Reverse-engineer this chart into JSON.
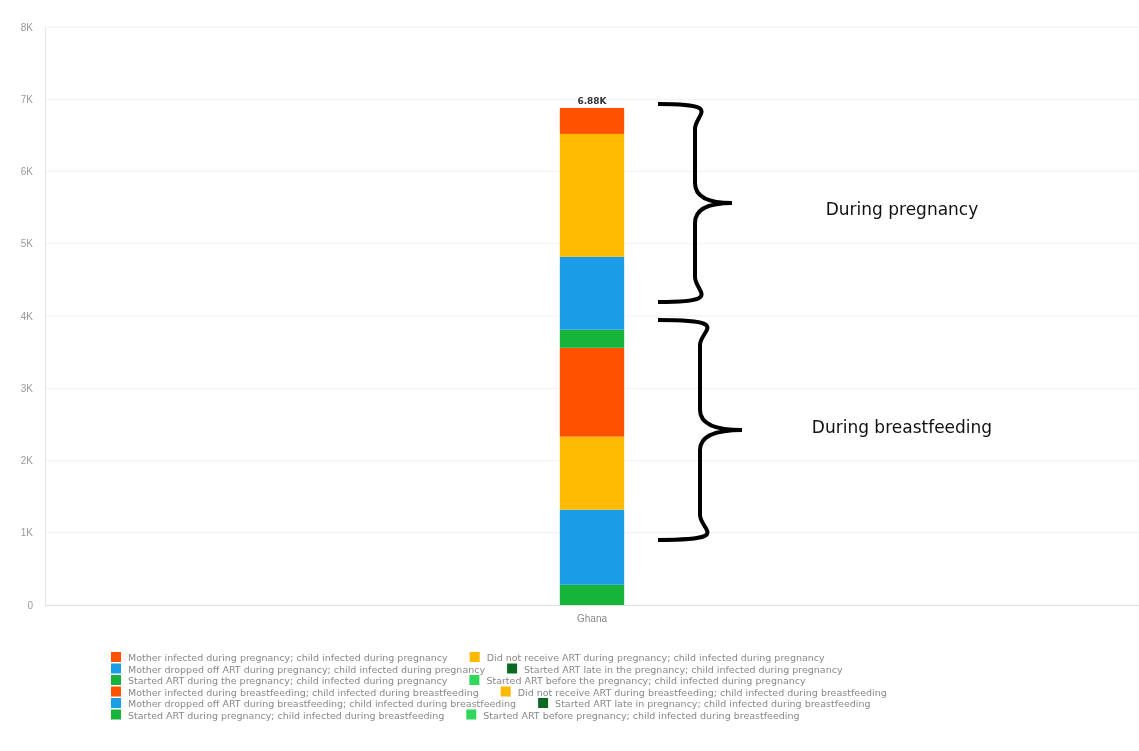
{
  "chart_data": {
    "type": "bar",
    "stacked": true,
    "categories": [
      "Ghana"
    ],
    "series": [
      {
        "name": "Started ART before pregnancy; child infected during breastfeeding",
        "color": "#2fd85a",
        "values": [
          0
        ]
      },
      {
        "name": "Started ART during pregnancy; child infected during breastfeeding",
        "color": "#16b53a",
        "values": [
          0.28
        ]
      },
      {
        "name": "Started ART late in pregnancy; child infected during breastfeeding",
        "color": "#0b6a22",
        "values": [
          0
        ]
      },
      {
        "name": "Mother dropped off ART during breastfeeding; child infected during breastfeeding",
        "color": "#1a9de6",
        "values": [
          1.04
        ]
      },
      {
        "name": "Did not receive ART during breastfeeding; child infected during breastfeeding",
        "color": "#fdba00",
        "values": [
          1.01
        ]
      },
      {
        "name": "Mother infected during breastfeeding; child infected during breastfeeding",
        "color": "#fe5200",
        "values": [
          1.23
        ]
      },
      {
        "name": "Started ART before the pregnancy; child infected during pregnancy",
        "color": "#2fd85a",
        "values": [
          0
        ]
      },
      {
        "name": "Started ART during the pregnancy; child infected during pregnancy",
        "color": "#16b53a",
        "values": [
          0.25
        ]
      },
      {
        "name": "Started ART late in the pregnancy; child infected during pregnancy",
        "color": "#0b6a22",
        "values": [
          0
        ]
      },
      {
        "name": "Mother dropped off ART during pregnancy; child infected during pregnancy",
        "color": "#1a9de6",
        "values": [
          1.01
        ]
      },
      {
        "name": "Did not receive ART during pregnancy; child infected during pregnancy",
        "color": "#fdba00",
        "values": [
          1.7
        ]
      },
      {
        "name": "Mother infected during pregnancy; child infected during pregnancy",
        "color": "#fe5200",
        "values": [
          0.36
        ]
      }
    ],
    "ylim": [
      0,
      8
    ],
    "yticks": [
      {
        "value": 0,
        "label": "0"
      },
      {
        "value": 1,
        "label": "1K"
      },
      {
        "value": 2,
        "label": "2K"
      },
      {
        "value": 3,
        "label": "3K"
      },
      {
        "value": 4,
        "label": "4K"
      },
      {
        "value": 5,
        "label": "5K"
      },
      {
        "value": 6,
        "label": "6K"
      },
      {
        "value": 7,
        "label": "7K"
      },
      {
        "value": 8,
        "label": "8K"
      }
    ],
    "grid": "y",
    "legend": "bottom",
    "totals": [
      "6.88K"
    ],
    "annotations": [
      "During pregnancy",
      "During breastfeeding"
    ]
  }
}
